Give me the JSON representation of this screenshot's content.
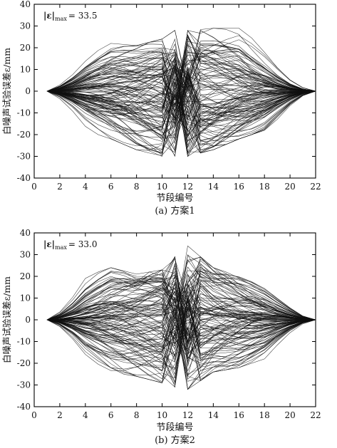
{
  "chart_data": [
    {
      "type": "line",
      "panel_caption": "(a) 方案1",
      "annotation": "|ε|max = 33.5",
      "annotation_parts": {
        "abs": "|ε|",
        "sub": "max",
        "rest": "= 33.5"
      },
      "xlabel": "节段编号",
      "ylabel": "白噪声试验误差ε/mm",
      "xlim": [
        0,
        22
      ],
      "ylim": [
        -40,
        40
      ],
      "xticks": [
        0,
        2,
        4,
        6,
        8,
        10,
        12,
        14,
        16,
        18,
        20,
        22
      ],
      "yticks": [
        -40,
        -30,
        -20,
        -10,
        0,
        10,
        20,
        30,
        40
      ],
      "x_segments": [
        1,
        2,
        3,
        4,
        5,
        6,
        7,
        8,
        9,
        10,
        11,
        12,
        13,
        14,
        15,
        16,
        17,
        18,
        19,
        20,
        21,
        22
      ],
      "n_series": 120,
      "max_abs_error": 33.5,
      "envelope": {
        "x": [
          1,
          2,
          4,
          6,
          8,
          10,
          11,
          12,
          14,
          16,
          18,
          20,
          22
        ],
        "upper": [
          3,
          10,
          18,
          22,
          21,
          24,
          28,
          28,
          29,
          29,
          20,
          10,
          2
        ],
        "lower": [
          -3,
          -10,
          -18,
          -22,
          -27,
          -30,
          -30,
          -30,
          -27,
          -22,
          -18,
          -10,
          -2
        ]
      },
      "grid": false,
      "legend": "none"
    },
    {
      "type": "line",
      "panel_caption": "(b) 方案2",
      "annotation": "|ε|max = 33.0",
      "annotation_parts": {
        "abs": "|ε|",
        "sub": "max",
        "rest": "= 33.0"
      },
      "xlabel": "节段编号",
      "ylabel": "白噪声试验误差ε/mm",
      "xlim": [
        0,
        22
      ],
      "ylim": [
        -40,
        40
      ],
      "xticks": [
        0,
        2,
        4,
        6,
        8,
        10,
        12,
        14,
        16,
        18,
        20,
        22
      ],
      "yticks": [
        -40,
        -30,
        -20,
        -10,
        0,
        10,
        20,
        30,
        40
      ],
      "x_segments": [
        1,
        2,
        3,
        4,
        5,
        6,
        7,
        8,
        9,
        10,
        11,
        12,
        13,
        14,
        15,
        16,
        17,
        18,
        19,
        20,
        21,
        22
      ],
      "n_series": 120,
      "max_abs_error": 33.0,
      "envelope": {
        "x": [
          1,
          2,
          4,
          6,
          8,
          10,
          11,
          12,
          14,
          16,
          18,
          20,
          22
        ],
        "upper": [
          3,
          10,
          20,
          24,
          21,
          23,
          29,
          34,
          24,
          20,
          16,
          10,
          2
        ],
        "lower": [
          -3,
          -10,
          -20,
          -24,
          -26,
          -29,
          -31,
          -32,
          -24,
          -22,
          -18,
          -10,
          -2
        ]
      },
      "grid": false,
      "legend": "none"
    }
  ]
}
